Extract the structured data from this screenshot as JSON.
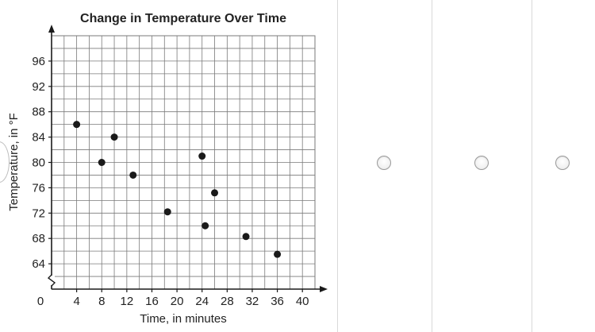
{
  "question": {
    "graph_column_label": "",
    "choices": [
      {
        "id": "choice-1",
        "selected": false
      },
      {
        "id": "choice-2",
        "selected": false
      },
      {
        "id": "choice-3",
        "selected": false
      }
    ]
  },
  "chart_data": {
    "type": "scatter",
    "title": "Change in Temperature Over Time",
    "xlabel": "Time, in minutes",
    "ylabel": "Temperature, in °F",
    "origin_label": "0",
    "x_ticks": [
      4,
      8,
      12,
      16,
      20,
      24,
      28,
      32,
      36,
      40
    ],
    "x_tick_labels": [
      "4",
      "8",
      "12",
      "16",
      "20",
      "24",
      "28",
      "32",
      "36",
      "40"
    ],
    "y_ticks": [
      64,
      68,
      72,
      76,
      80,
      84,
      88,
      92,
      96
    ],
    "y_tick_labels": [
      "64",
      "68",
      "72",
      "76",
      "80",
      "84",
      "88",
      "92",
      "96"
    ],
    "xlim": [
      0,
      42
    ],
    "ylim": [
      60,
      100
    ],
    "y_axis_break": true,
    "grid": true,
    "points": [
      {
        "x": 4,
        "y": 86
      },
      {
        "x": 8,
        "y": 80
      },
      {
        "x": 10,
        "y": 84
      },
      {
        "x": 13,
        "y": 78
      },
      {
        "x": 18.5,
        "y": 72.2
      },
      {
        "x": 24,
        "y": 81
      },
      {
        "x": 24.5,
        "y": 70
      },
      {
        "x": 26,
        "y": 75.2
      },
      {
        "x": 31,
        "y": 68.3
      },
      {
        "x": 36,
        "y": 65.5
      }
    ],
    "colors": {
      "point": "#1a1a1a",
      "grid": "#7a7a7a",
      "axis": "#1a1a1a",
      "text": "#222222"
    }
  }
}
